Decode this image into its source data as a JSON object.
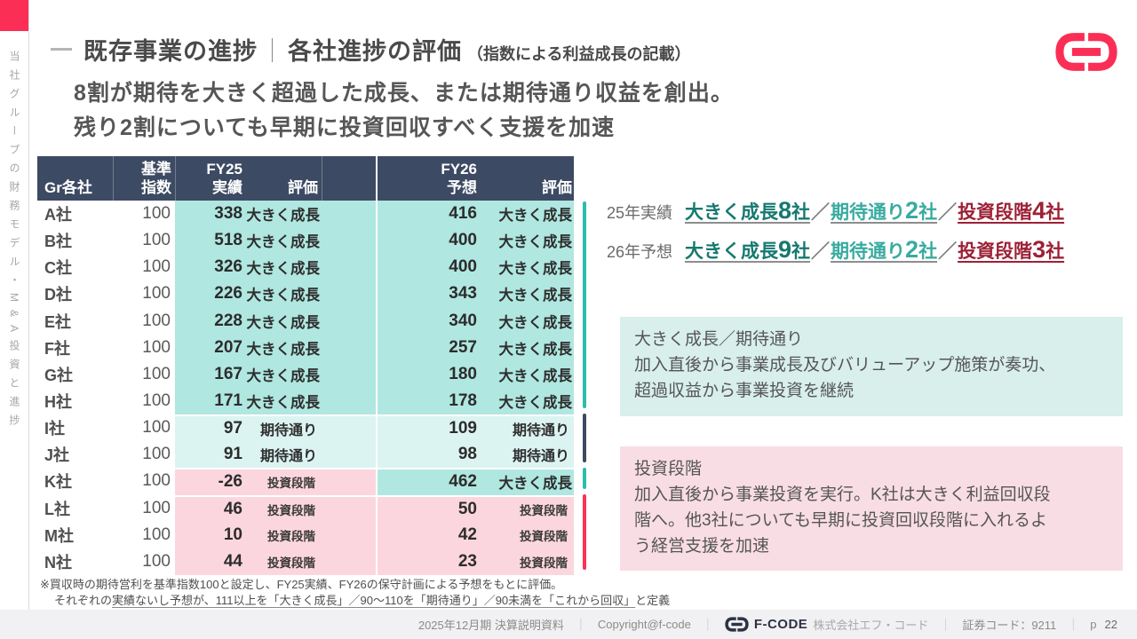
{
  "sidebar": {
    "tab_text": "当社グループの財務モデル・M&A投資と進捗"
  },
  "header": {
    "title_left": "既存事業の進捗",
    "title_separator": "｜",
    "title_right": "各社進捗の評価",
    "title_note": "（指数による利益成長の記載）"
  },
  "lead": {
    "line1": "8割が期待を大きく超過した成長、または期待通り収益を創出。",
    "line2": "残り2割についても早期に投資回収すべく支援を加速"
  },
  "table": {
    "headers": {
      "company": "Gr各社",
      "base1": "基準",
      "base2": "指数",
      "fy25": "FY25",
      "fy25_sub": "実績",
      "fy25_eval": "評価",
      "fy26": "FY26",
      "fy26_sub": "予想",
      "fy26_eval": "評価"
    },
    "rows": [
      {
        "company": "A社",
        "base": "100",
        "fy25": "338",
        "fy25_eval": "大きく成長",
        "fy25_state": "growth",
        "fy26": "416",
        "fy26_eval": "大きく成長",
        "fy26_state": "growth"
      },
      {
        "company": "B社",
        "base": "100",
        "fy25": "518",
        "fy25_eval": "大きく成長",
        "fy25_state": "growth",
        "fy26": "400",
        "fy26_eval": "大きく成長",
        "fy26_state": "growth"
      },
      {
        "company": "C社",
        "base": "100",
        "fy25": "326",
        "fy25_eval": "大きく成長",
        "fy25_state": "growth",
        "fy26": "400",
        "fy26_eval": "大きく成長",
        "fy26_state": "growth"
      },
      {
        "company": "D社",
        "base": "100",
        "fy25": "226",
        "fy25_eval": "大きく成長",
        "fy25_state": "growth",
        "fy26": "343",
        "fy26_eval": "大きく成長",
        "fy26_state": "growth"
      },
      {
        "company": "E社",
        "base": "100",
        "fy25": "228",
        "fy25_eval": "大きく成長",
        "fy25_state": "growth",
        "fy26": "340",
        "fy26_eval": "大きく成長",
        "fy26_state": "growth"
      },
      {
        "company": "F社",
        "base": "100",
        "fy25": "207",
        "fy25_eval": "大きく成長",
        "fy25_state": "growth",
        "fy26": "257",
        "fy26_eval": "大きく成長",
        "fy26_state": "growth"
      },
      {
        "company": "G社",
        "base": "100",
        "fy25": "167",
        "fy25_eval": "大きく成長",
        "fy25_state": "growth",
        "fy26": "180",
        "fy26_eval": "大きく成長",
        "fy26_state": "growth"
      },
      {
        "company": "H社",
        "base": "100",
        "fy25": "171",
        "fy25_eval": "大きく成長",
        "fy25_state": "growth",
        "fy26": "178",
        "fy26_eval": "大きく成長",
        "fy26_state": "growth"
      },
      {
        "company": "I社",
        "base": "100",
        "fy25": "97",
        "fy25_eval": "期待通り",
        "fy25_state": "ontrack",
        "fy26": "109",
        "fy26_eval": "期待通り",
        "fy26_state": "ontrack"
      },
      {
        "company": "J社",
        "base": "100",
        "fy25": "91",
        "fy25_eval": "期待通り",
        "fy25_state": "ontrack",
        "fy26": "98",
        "fy26_eval": "期待通り",
        "fy26_state": "ontrack"
      },
      {
        "company": "K社",
        "base": "100",
        "fy25": "-26",
        "fy25_eval": "投資段階",
        "fy25_state": "invest",
        "fy26": "462",
        "fy26_eval": "大きく成長",
        "fy26_state": "growth"
      },
      {
        "company": "L社",
        "base": "100",
        "fy25": "46",
        "fy25_eval": "投資段階",
        "fy25_state": "invest",
        "fy26": "50",
        "fy26_eval": "投資段階",
        "fy26_state": "invest"
      },
      {
        "company": "M社",
        "base": "100",
        "fy25": "10",
        "fy25_eval": "投資段階",
        "fy25_state": "invest",
        "fy26": "42",
        "fy26_eval": "投資段階",
        "fy26_state": "invest"
      },
      {
        "company": "N社",
        "base": "100",
        "fy25": "44",
        "fy25_eval": "投資段階",
        "fy25_state": "invest",
        "fy26": "23",
        "fy26_eval": "投資段階",
        "fy26_state": "invest"
      }
    ]
  },
  "summary": {
    "separator": "／",
    "rows": [
      {
        "label": "25年実績",
        "segments": [
          {
            "text": "大きく成長",
            "count": "8",
            "unit": "社",
            "type": "growth"
          },
          {
            "text": "期待通り",
            "count": "2",
            "unit": "社",
            "type": "ontrack"
          },
          {
            "text": "投資段階",
            "count": "4",
            "unit": "社",
            "type": "invest"
          }
        ]
      },
      {
        "label": "26年予想",
        "segments": [
          {
            "text": "大きく成長",
            "count": "9",
            "unit": "社",
            "type": "growth"
          },
          {
            "text": "期待通り",
            "count": "2",
            "unit": "社",
            "type": "ontrack"
          },
          {
            "text": "投資段階",
            "count": "3",
            "unit": "社",
            "type": "invest"
          }
        ]
      }
    ]
  },
  "callouts": [
    {
      "type": "growth",
      "lines": [
        "大きく成長／期待通り",
        "加入直後から事業成長及びバリューアップ施策が奏功、",
        "超過収益から事業投資を継続"
      ]
    },
    {
      "type": "invest",
      "lines": [
        "投資段階",
        "加入直後から事業投資を実行。K社は大きく利益回収段",
        "階へ。他3社についても早期に投資回収段階に入れるよ",
        "う経営支援を加速"
      ]
    }
  ],
  "footnote": {
    "line1": "※買収時の期待営利を基準指数100と設定し、FY25実績、FY26の保守計画による予想をもとに評価。",
    "line2_prefix": "それぞれの",
    "line2_underline": "実績ないし予想が、111以上を「大きく成長」／90～110を「期待通り」／90未満を「これから回収」",
    "line2_suffix": "と定義"
  },
  "footer": {
    "doc": "2025年12月期 決算説明資料",
    "copyright": "Copyright@f-code",
    "divider": "｜",
    "brand": "F-CODE",
    "company": "株式会社エフ・コード",
    "stock_code": "証券コード：9211",
    "page_label": "p",
    "page_number": "22"
  },
  "colors": {
    "accent_pink": "#fb2e55",
    "table_header": "#3d4a63",
    "growth_bg": "#b0e7e1",
    "ontrack_bg": "#dcf4f1",
    "invest_bg": "#fcd6de",
    "marker_teal": "#2cbcae",
    "marker_navy": "#3d4a63",
    "marker_red": "#fb3355",
    "growth_text": "#16796f",
    "ontrack_text": "#38aba0",
    "invest_text": "#9c2136"
  }
}
